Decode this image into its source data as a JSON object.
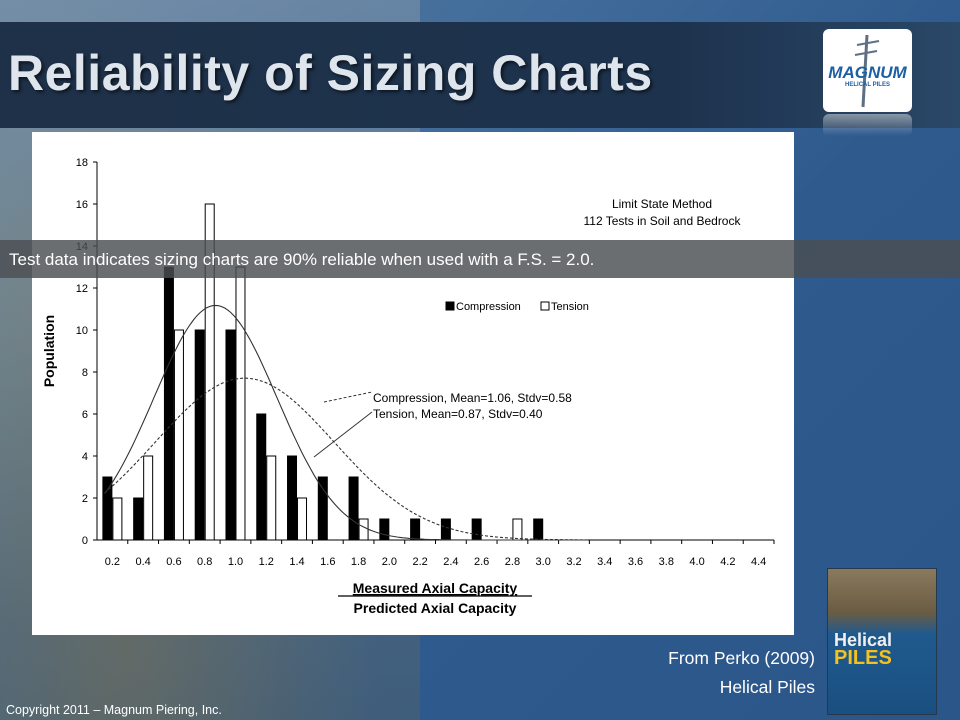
{
  "slide": {
    "title": "Reliability of Sizing Charts",
    "caption": "Test data indicates sizing charts are 90% reliable when used with a F.S. = 2.0.",
    "source_line1": "From Perko (2009)",
    "source_line2": "Helical Piles",
    "copyright": "Copyright 2011 – Magnum Piering, Inc.",
    "logo_text": "MAGNUM",
    "logo_sub": "HELICAL PILES",
    "book_title_line1": "Helical",
    "book_title_line2": "PILES"
  },
  "colors": {
    "compression": "#000000",
    "tension": "#ffffff",
    "background": "#2e5a8e"
  },
  "chart_data": {
    "type": "bar",
    "ylabel": "Population",
    "xlabel_numerator": "Measured Axial Capacity",
    "xlabel_denominator": "Predicted Axial Capacity",
    "ylim": [
      0,
      18
    ],
    "yticks": [
      0,
      2,
      4,
      6,
      8,
      10,
      12,
      14,
      16,
      18
    ],
    "categories": [
      "0.2",
      "0.4",
      "0.6",
      "0.8",
      "1.0",
      "1.2",
      "1.4",
      "1.6",
      "1.8",
      "2.0",
      "2.2",
      "2.4",
      "2.6",
      "2.8",
      "3.0",
      "3.2",
      "3.4",
      "3.6",
      "3.8",
      "4.0",
      "4.2",
      "4.4"
    ],
    "series": [
      {
        "name": "Compression",
        "values": [
          3,
          2,
          13,
          10,
          10,
          6,
          4,
          3,
          3,
          1,
          1,
          1,
          1,
          0,
          1,
          0,
          0,
          0,
          0,
          0,
          0,
          0
        ]
      },
      {
        "name": "Tension",
        "values": [
          2,
          4,
          10,
          16,
          13,
          4,
          2,
          0,
          1,
          0,
          0,
          0,
          0,
          1,
          0,
          0,
          0,
          0,
          0,
          0,
          0,
          0
        ]
      }
    ],
    "curves": [
      {
        "name": "Compression, Mean=1.06, Stdv=0.58",
        "style": "dashed",
        "mean": 1.06,
        "stdv": 0.58
      },
      {
        "name": "Tension, Mean=0.87, Stdv=0.40",
        "style": "solid",
        "mean": 0.87,
        "stdv": 0.4
      }
    ],
    "annotation_line1": "Limit State Method",
    "annotation_line2": "112 Tests in Soil and Bedrock",
    "legend_position": "upper-right",
    "grid": false
  }
}
